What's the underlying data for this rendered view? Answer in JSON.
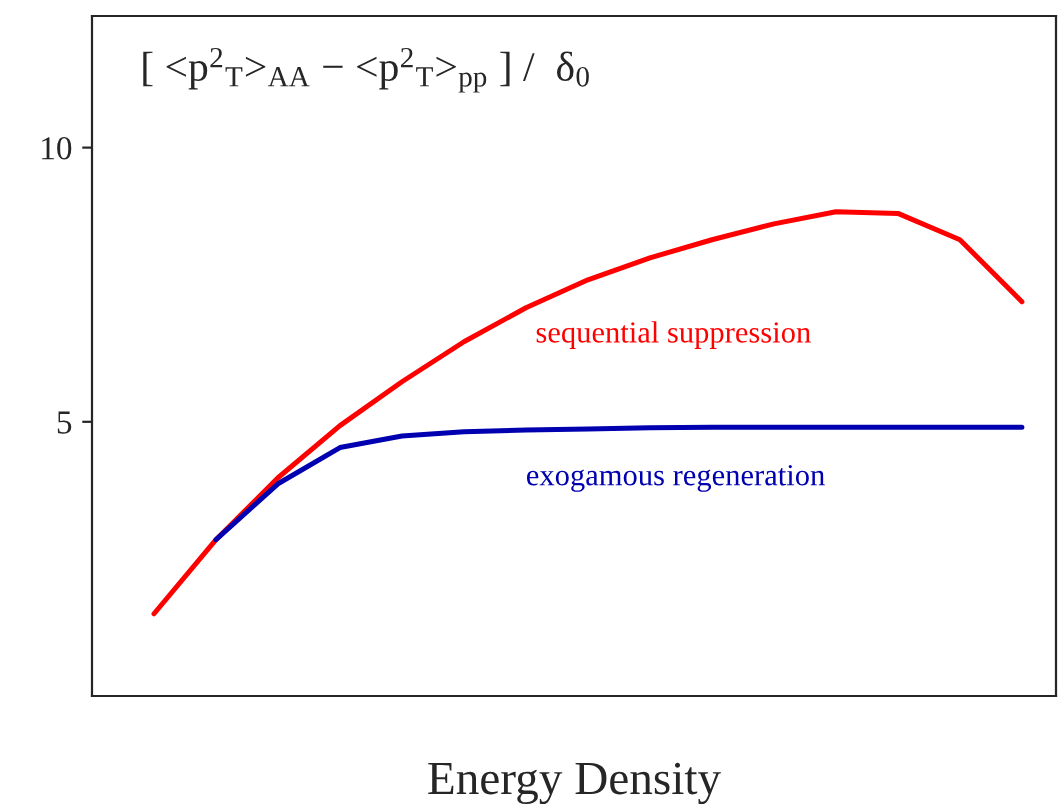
{
  "chart_data": {
    "type": "line",
    "title": "[ <p$^{2}$$_{T}$>$_{AA}$ − <p$^{2}$$_{T}$>$_{pp}$ ] /  δ$_{0}$",
    "xlabel": "Energy Density",
    "categories": [
      null,
      null,
      null,
      null,
      null,
      null,
      null,
      null,
      null,
      null,
      null,
      null,
      null,
      null,
      null
    ],
    "series": [
      {
        "name": "sequential suppression",
        "color": "#ff0000",
        "values": [
          1.5,
          2.85,
          3.98,
          4.93,
          5.73,
          6.46,
          7.08,
          7.59,
          7.99,
          8.32,
          8.61,
          8.83,
          8.8,
          8.32,
          7.19
        ]
      },
      {
        "name": "exogamous regeneration",
        "color": "#0000b0",
        "values": [
          null,
          2.85,
          3.87,
          4.53,
          4.74,
          4.82,
          4.85,
          4.87,
          4.89,
          4.9,
          4.9,
          4.9,
          4.9,
          4.9,
          4.9
        ]
      }
    ],
    "ylim": [
      0,
      12.4
    ],
    "yticks": [
      5,
      10
    ],
    "grid": false,
    "legend": false
  }
}
